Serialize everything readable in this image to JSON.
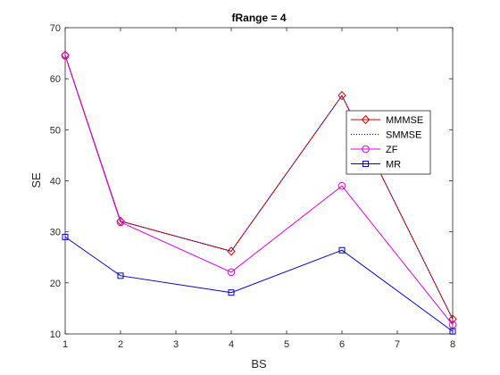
{
  "chart_data": {
    "type": "line",
    "title": "fRange = 4",
    "xlabel": "BS",
    "ylabel": "SE",
    "xlim": [
      1,
      8
    ],
    "ylim": [
      10,
      70
    ],
    "xticks": [
      1,
      2,
      3,
      4,
      5,
      6,
      7,
      8
    ],
    "yticks": [
      10,
      20,
      30,
      40,
      50,
      60,
      70
    ],
    "x": [
      1,
      2,
      4,
      6,
      8
    ],
    "grid": false,
    "legend_position": "right",
    "series": [
      {
        "name": "MMMSE",
        "color": "#d40000",
        "marker": "diamond",
        "dash": "solid",
        "values": [
          64.6,
          32.1,
          26.2,
          56.7,
          12.9
        ]
      },
      {
        "name": "SMMSE",
        "color": "#0000cc",
        "marker": "none",
        "dash": "dotted",
        "values": [
          64.6,
          32.1,
          26.2,
          56.7,
          12.9
        ]
      },
      {
        "name": "ZF",
        "color": "#e000e0",
        "marker": "circle",
        "dash": "solid",
        "values": [
          64.5,
          31.9,
          22.1,
          39.0,
          11.8
        ]
      },
      {
        "name": "MR",
        "color": "#0000cc",
        "marker": "square",
        "dash": "solid",
        "values": [
          29.0,
          21.4,
          18.1,
          26.4,
          10.5
        ]
      }
    ]
  }
}
